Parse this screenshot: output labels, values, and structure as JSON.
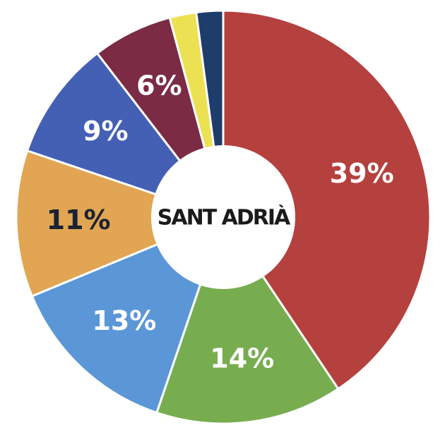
{
  "chart_data": {
    "type": "donut",
    "center_label": "SANT ADRIÀ",
    "values": [
      39,
      14,
      13,
      11,
      9,
      6,
      2,
      2
    ],
    "value_labels": [
      "39%",
      "14%",
      "13%",
      "11%",
      "9%",
      "6%",
      null,
      null
    ],
    "colors": [
      "#b5413f",
      "#77ad4f",
      "#5b97d6",
      "#e1a553",
      "#4460b4",
      "#7b2b44",
      "#ece152",
      "#1e3d6b"
    ]
  }
}
